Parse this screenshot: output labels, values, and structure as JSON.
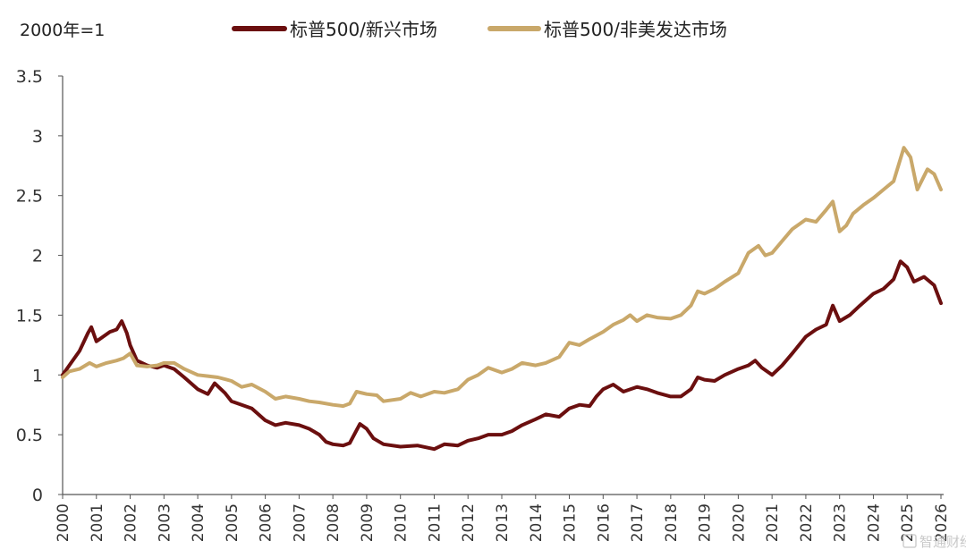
{
  "chart_data": {
    "type": "line",
    "unit_label": "2000年=1",
    "ylim": [
      0,
      3.5
    ],
    "y_ticks": [
      "0",
      "0.5",
      "1",
      "1.5",
      "2",
      "2.5",
      "3",
      "3.5"
    ],
    "x_ticks": [
      "2000",
      "2001",
      "2002",
      "2003",
      "2004",
      "2005",
      "2006",
      "2007",
      "2008",
      "2009",
      "2010",
      "2011",
      "2012",
      "2013",
      "2014",
      "2015",
      "2016",
      "2017",
      "2018",
      "2019",
      "2020",
      "2021",
      "2022",
      "2023",
      "2024",
      "2025",
      "2026"
    ],
    "xlim": [
      2000,
      2026
    ],
    "grid": false,
    "legend_position": "top",
    "series": [
      {
        "name": "标普500/新兴市场",
        "color": "#6b0f0f",
        "points": [
          [
            2000.0,
            1.0
          ],
          [
            2000.25,
            1.1
          ],
          [
            2000.5,
            1.2
          ],
          [
            2000.75,
            1.35
          ],
          [
            2000.85,
            1.4
          ],
          [
            2001.0,
            1.28
          ],
          [
            2001.2,
            1.32
          ],
          [
            2001.4,
            1.36
          ],
          [
            2001.6,
            1.38
          ],
          [
            2001.75,
            1.45
          ],
          [
            2001.9,
            1.35
          ],
          [
            2002.0,
            1.25
          ],
          [
            2002.2,
            1.12
          ],
          [
            2002.5,
            1.08
          ],
          [
            2002.8,
            1.06
          ],
          [
            2003.0,
            1.08
          ],
          [
            2003.3,
            1.05
          ],
          [
            2003.6,
            0.98
          ],
          [
            2004.0,
            0.88
          ],
          [
            2004.3,
            0.84
          ],
          [
            2004.5,
            0.93
          ],
          [
            2004.8,
            0.85
          ],
          [
            2005.0,
            0.78
          ],
          [
            2005.3,
            0.75
          ],
          [
            2005.6,
            0.72
          ],
          [
            2006.0,
            0.62
          ],
          [
            2006.3,
            0.58
          ],
          [
            2006.6,
            0.6
          ],
          [
            2007.0,
            0.58
          ],
          [
            2007.3,
            0.55
          ],
          [
            2007.6,
            0.5
          ],
          [
            2007.8,
            0.44
          ],
          [
            2008.0,
            0.42
          ],
          [
            2008.3,
            0.41
          ],
          [
            2008.5,
            0.43
          ],
          [
            2008.8,
            0.59
          ],
          [
            2009.0,
            0.55
          ],
          [
            2009.2,
            0.47
          ],
          [
            2009.5,
            0.42
          ],
          [
            2010.0,
            0.4
          ],
          [
            2010.5,
            0.41
          ],
          [
            2011.0,
            0.38
          ],
          [
            2011.3,
            0.42
          ],
          [
            2011.7,
            0.41
          ],
          [
            2012.0,
            0.45
          ],
          [
            2012.3,
            0.47
          ],
          [
            2012.6,
            0.5
          ],
          [
            2013.0,
            0.5
          ],
          [
            2013.3,
            0.53
          ],
          [
            2013.6,
            0.58
          ],
          [
            2014.0,
            0.63
          ],
          [
            2014.3,
            0.67
          ],
          [
            2014.7,
            0.65
          ],
          [
            2015.0,
            0.72
          ],
          [
            2015.3,
            0.75
          ],
          [
            2015.6,
            0.74
          ],
          [
            2015.8,
            0.82
          ],
          [
            2016.0,
            0.88
          ],
          [
            2016.3,
            0.92
          ],
          [
            2016.6,
            0.86
          ],
          [
            2017.0,
            0.9
          ],
          [
            2017.3,
            0.88
          ],
          [
            2017.6,
            0.85
          ],
          [
            2018.0,
            0.82
          ],
          [
            2018.3,
            0.82
          ],
          [
            2018.6,
            0.88
          ],
          [
            2018.8,
            0.98
          ],
          [
            2019.0,
            0.96
          ],
          [
            2019.3,
            0.95
          ],
          [
            2019.6,
            1.0
          ],
          [
            2020.0,
            1.05
          ],
          [
            2020.3,
            1.08
          ],
          [
            2020.5,
            1.12
          ],
          [
            2020.7,
            1.06
          ],
          [
            2021.0,
            1.0
          ],
          [
            2021.3,
            1.08
          ],
          [
            2021.6,
            1.18
          ],
          [
            2022.0,
            1.32
          ],
          [
            2022.3,
            1.38
          ],
          [
            2022.6,
            1.42
          ],
          [
            2022.8,
            1.58
          ],
          [
            2023.0,
            1.45
          ],
          [
            2023.3,
            1.5
          ],
          [
            2023.6,
            1.58
          ],
          [
            2024.0,
            1.68
          ],
          [
            2024.3,
            1.72
          ],
          [
            2024.6,
            1.8
          ],
          [
            2024.8,
            1.95
          ],
          [
            2025.0,
            1.9
          ],
          [
            2025.2,
            1.78
          ],
          [
            2025.5,
            1.82
          ],
          [
            2025.8,
            1.75
          ],
          [
            2026.0,
            1.6
          ]
        ]
      },
      {
        "name": "标普500/非美发达市场",
        "color": "#c9a86a",
        "points": [
          [
            2000.0,
            0.98
          ],
          [
            2000.2,
            1.03
          ],
          [
            2000.5,
            1.05
          ],
          [
            2000.8,
            1.1
          ],
          [
            2001.0,
            1.07
          ],
          [
            2001.3,
            1.1
          ],
          [
            2001.6,
            1.12
          ],
          [
            2001.8,
            1.14
          ],
          [
            2002.0,
            1.18
          ],
          [
            2002.2,
            1.08
          ],
          [
            2002.5,
            1.07
          ],
          [
            2002.8,
            1.08
          ],
          [
            2003.0,
            1.1
          ],
          [
            2003.3,
            1.1
          ],
          [
            2003.6,
            1.05
          ],
          [
            2004.0,
            1.0
          ],
          [
            2004.3,
            0.99
          ],
          [
            2004.6,
            0.98
          ],
          [
            2005.0,
            0.95
          ],
          [
            2005.3,
            0.9
          ],
          [
            2005.6,
            0.92
          ],
          [
            2006.0,
            0.86
          ],
          [
            2006.3,
            0.8
          ],
          [
            2006.6,
            0.82
          ],
          [
            2007.0,
            0.8
          ],
          [
            2007.3,
            0.78
          ],
          [
            2007.6,
            0.77
          ],
          [
            2008.0,
            0.75
          ],
          [
            2008.3,
            0.74
          ],
          [
            2008.5,
            0.76
          ],
          [
            2008.7,
            0.86
          ],
          [
            2009.0,
            0.84
          ],
          [
            2009.3,
            0.83
          ],
          [
            2009.5,
            0.78
          ],
          [
            2010.0,
            0.8
          ],
          [
            2010.3,
            0.85
          ],
          [
            2010.6,
            0.82
          ],
          [
            2011.0,
            0.86
          ],
          [
            2011.3,
            0.85
          ],
          [
            2011.7,
            0.88
          ],
          [
            2012.0,
            0.96
          ],
          [
            2012.3,
            1.0
          ],
          [
            2012.6,
            1.06
          ],
          [
            2013.0,
            1.02
          ],
          [
            2013.3,
            1.05
          ],
          [
            2013.6,
            1.1
          ],
          [
            2014.0,
            1.08
          ],
          [
            2014.3,
            1.1
          ],
          [
            2014.7,
            1.15
          ],
          [
            2015.0,
            1.27
          ],
          [
            2015.3,
            1.25
          ],
          [
            2015.6,
            1.3
          ],
          [
            2016.0,
            1.36
          ],
          [
            2016.3,
            1.42
          ],
          [
            2016.6,
            1.46
          ],
          [
            2016.8,
            1.5
          ],
          [
            2017.0,
            1.45
          ],
          [
            2017.3,
            1.5
          ],
          [
            2017.6,
            1.48
          ],
          [
            2018.0,
            1.47
          ],
          [
            2018.3,
            1.5
          ],
          [
            2018.6,
            1.58
          ],
          [
            2018.8,
            1.7
          ],
          [
            2019.0,
            1.68
          ],
          [
            2019.3,
            1.72
          ],
          [
            2019.6,
            1.78
          ],
          [
            2020.0,
            1.85
          ],
          [
            2020.3,
            2.02
          ],
          [
            2020.6,
            2.08
          ],
          [
            2020.8,
            2.0
          ],
          [
            2021.0,
            2.02
          ],
          [
            2021.3,
            2.12
          ],
          [
            2021.6,
            2.22
          ],
          [
            2022.0,
            2.3
          ],
          [
            2022.3,
            2.28
          ],
          [
            2022.6,
            2.38
          ],
          [
            2022.8,
            2.45
          ],
          [
            2023.0,
            2.2
          ],
          [
            2023.2,
            2.25
          ],
          [
            2023.4,
            2.35
          ],
          [
            2023.7,
            2.42
          ],
          [
            2024.0,
            2.48
          ],
          [
            2024.3,
            2.55
          ],
          [
            2024.6,
            2.62
          ],
          [
            2024.9,
            2.9
          ],
          [
            2025.1,
            2.82
          ],
          [
            2025.3,
            2.55
          ],
          [
            2025.6,
            2.72
          ],
          [
            2025.8,
            2.68
          ],
          [
            2026.0,
            2.55
          ]
        ]
      }
    ]
  },
  "watermark": "智通财经"
}
